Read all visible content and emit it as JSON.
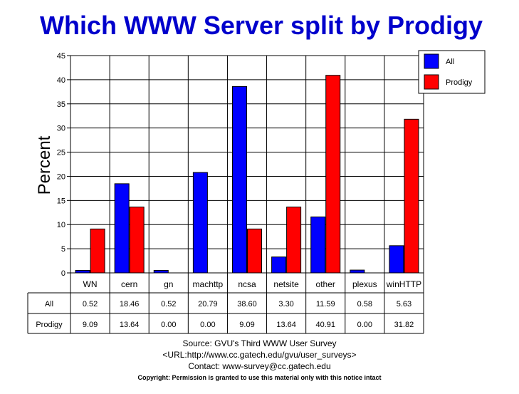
{
  "chart_data": {
    "type": "bar",
    "title": "Which WWW Server split by Prodigy",
    "ylabel": "Percent",
    "xlabel": "",
    "ylim": [
      0,
      45
    ],
    "yticks": [
      0,
      5,
      10,
      15,
      20,
      25,
      30,
      35,
      40,
      45
    ],
    "categories": [
      "WN",
      "cern",
      "gn",
      "machttp",
      "ncsa",
      "netsite",
      "other",
      "plexus",
      "winHTTP"
    ],
    "series": [
      {
        "name": "All",
        "color": "#0000ff",
        "values": [
          0.52,
          18.46,
          0.52,
          20.79,
          38.6,
          3.3,
          11.59,
          0.58,
          5.63
        ],
        "labels": [
          "0.52",
          "18.46",
          "0.52",
          "20.79",
          "38.60",
          "3.30",
          "11.59",
          "0.58",
          "5.63"
        ]
      },
      {
        "name": "Prodigy",
        "color": "#ff0000",
        "values": [
          9.09,
          13.64,
          0.0,
          0.0,
          9.09,
          13.64,
          40.91,
          0.0,
          31.82
        ],
        "labels": [
          "9.09",
          "13.64",
          "0.00",
          "0.00",
          "9.09",
          "13.64",
          "40.91",
          "0.00",
          "31.82"
        ]
      }
    ],
    "legend": "top-right",
    "grid": true
  },
  "footer": {
    "source": "Source: GVU's Third WWW User Survey",
    "url": "<URL:http://www.cc.gatech.edu/gvu/user_surveys>",
    "contact": "Contact: www-survey@cc.gatech.edu",
    "copyright": "Copyright: Permission is granted to use this material only with this notice intact"
  },
  "colors": {
    "title": "#0000cc",
    "grid": "#000000"
  }
}
